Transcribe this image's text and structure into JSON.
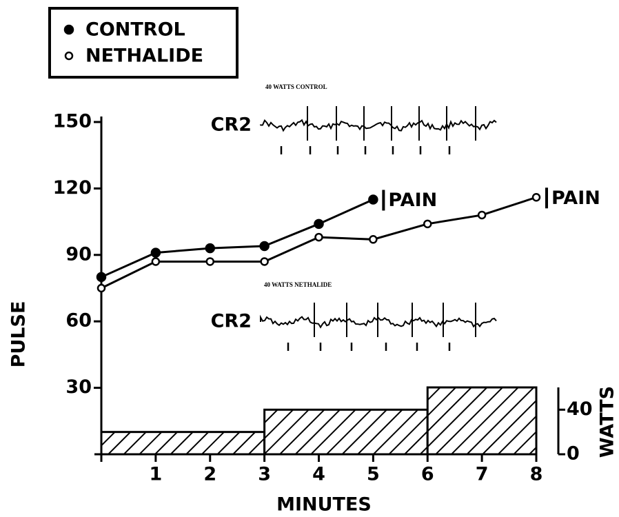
{
  "chart_data": {
    "type": "line",
    "xlabel": "MINUTES",
    "ylabel": "PULSE",
    "y2label": "WATTS",
    "xlim": [
      0,
      8
    ],
    "xticks": [
      1,
      2,
      3,
      4,
      5,
      6,
      7,
      8
    ],
    "ylim": [
      0,
      150
    ],
    "yticks": [
      30,
      60,
      90,
      120,
      150
    ],
    "y2lim": [
      0,
      60
    ],
    "y2ticks": [
      0,
      40
    ],
    "series": [
      {
        "name": "CONTROL",
        "color": "#000000",
        "marker": "filled",
        "x": [
          0,
          1,
          2,
          3,
          4,
          5
        ],
        "values": [
          80,
          91,
          93,
          94,
          104,
          115
        ],
        "end_label": "PAIN"
      },
      {
        "name": "NETHALIDE",
        "color": "#000000",
        "marker": "open",
        "x": [
          0,
          1,
          2,
          3,
          4,
          5,
          6,
          7,
          8
        ],
        "values": [
          75,
          87,
          87,
          87,
          98,
          97,
          104,
          108,
          116
        ],
        "end_label": "PAIN"
      }
    ],
    "workload": {
      "bins": [
        0,
        3,
        6,
        8
      ],
      "values": [
        20,
        40,
        60
      ],
      "axis": "y2"
    },
    "insets": [
      {
        "title": "40 WATTS CONTROL",
        "lead": "CR2"
      },
      {
        "title": "40 WATTS NETHALIDE",
        "lead": "CR2"
      }
    ]
  }
}
